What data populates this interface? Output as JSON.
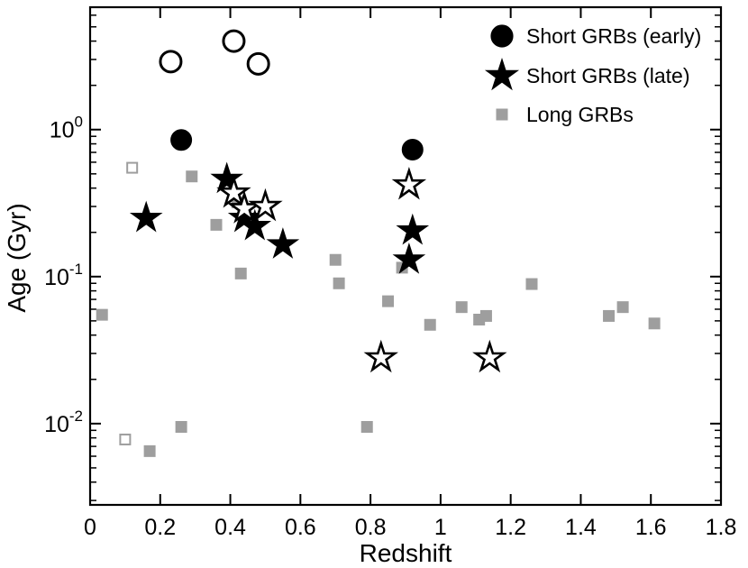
{
  "figure": {
    "background": "#ffffff",
    "frame_color": "#000000"
  },
  "chart_data": {
    "type": "scatter",
    "title": "",
    "xlabel": "Redshift",
    "ylabel": "Age (Gyr)",
    "xscale": "linear",
    "yscale": "log",
    "xlim": [
      0,
      1.8
    ],
    "ylim": [
      0.0028,
      6.8
    ],
    "grid": false,
    "x_ticks": {
      "values": [
        0,
        0.2,
        0.4,
        0.6,
        0.8,
        1,
        1.2,
        1.4,
        1.6,
        1.8
      ],
      "labels": [
        "0",
        "0.2",
        "0.4",
        "0.6",
        "0.8",
        "1",
        "1.2",
        "1.4",
        "1.6",
        "1.8"
      ]
    },
    "y_ticks": {
      "values": [
        0.01,
        0.1,
        1
      ],
      "labels": [
        "10^-2",
        "10^-1",
        "10^0"
      ]
    },
    "legend": {
      "position": "top-right",
      "items": [
        {
          "label": "Short GRBs (early)",
          "marker": "circle",
          "fill": "filled",
          "color": "#000000"
        },
        {
          "label": "Short GRBs (late)",
          "marker": "star",
          "fill": "filled",
          "color": "#000000"
        },
        {
          "label": "Long GRBs",
          "marker": "square",
          "fill": "filled",
          "color": "#9e9e9e"
        }
      ]
    },
    "series": [
      {
        "name": "Long GRBs",
        "marker": "square",
        "fill": "filled",
        "color": "#9e9e9e",
        "points": [
          [
            0.034,
            0.055
          ],
          [
            0.17,
            0.0065
          ],
          [
            0.26,
            0.0095
          ],
          [
            0.29,
            0.48
          ],
          [
            0.36,
            0.225
          ],
          [
            0.42,
            0.32
          ],
          [
            0.43,
            0.105
          ],
          [
            0.7,
            0.13
          ],
          [
            0.71,
            0.09
          ],
          [
            0.79,
            0.0095
          ],
          [
            0.85,
            0.068
          ],
          [
            0.89,
            0.115
          ],
          [
            0.97,
            0.047
          ],
          [
            1.06,
            0.062
          ],
          [
            1.11,
            0.051
          ],
          [
            1.13,
            0.054
          ],
          [
            1.26,
            0.089
          ],
          [
            1.48,
            0.054
          ],
          [
            1.52,
            0.062
          ],
          [
            1.61,
            0.048
          ]
        ]
      },
      {
        "name": "Long GRBs (open)",
        "marker": "square",
        "fill": "open",
        "color": "#9e9e9e",
        "points": [
          [
            0.1,
            0.0078
          ],
          [
            0.12,
            0.55
          ]
        ]
      },
      {
        "name": "Short GRBs (early, open)",
        "marker": "circle",
        "fill": "open",
        "color": "#000000",
        "points": [
          [
            0.23,
            2.9
          ],
          [
            0.41,
            4.0
          ],
          [
            0.48,
            2.8
          ]
        ]
      },
      {
        "name": "Short GRBs (late)",
        "marker": "star",
        "fill": "filled",
        "color": "#000000",
        "points": [
          [
            0.16,
            0.25
          ],
          [
            0.39,
            0.46
          ],
          [
            0.44,
            0.25
          ],
          [
            0.47,
            0.22
          ],
          [
            0.55,
            0.165
          ],
          [
            0.92,
            0.205
          ],
          [
            0.91,
            0.13
          ]
        ]
      },
      {
        "name": "Short GRBs (late, open)",
        "marker": "star",
        "fill": "open",
        "color": "#000000",
        "points": [
          [
            0.41,
            0.37
          ],
          [
            0.44,
            0.29
          ],
          [
            0.5,
            0.3
          ],
          [
            0.91,
            0.42
          ],
          [
            0.83,
            0.028
          ],
          [
            1.14,
            0.028
          ]
        ]
      },
      {
        "name": "Short GRBs (early)",
        "marker": "circle",
        "fill": "filled",
        "color": "#000000",
        "points": [
          [
            0.26,
            0.85
          ],
          [
            0.92,
            0.73
          ]
        ]
      }
    ]
  }
}
